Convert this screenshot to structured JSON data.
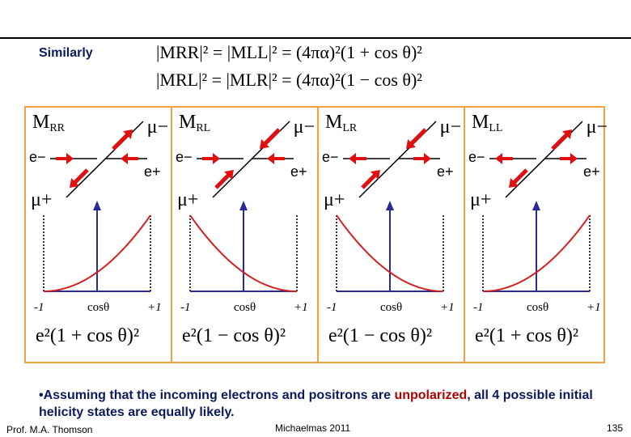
{
  "slide": {
    "heading": "Similarly",
    "eq1": "|MRR|² = |MLL|² = (4πα)²(1 + cos θ)²",
    "eq2": "|MRL|² = |MLR|² = (4πα)²(1 − cos θ)²",
    "accent_color": "#f2a040",
    "curve_color": "#d42020",
    "arrow_color": "#e01010",
    "axis_color": "#2a2a9a"
  },
  "panels": [
    {
      "label_main": "M",
      "label_sub": "RR",
      "mu_minus": "μ−",
      "e_minus": "e−",
      "e_plus": "e+",
      "mu_plus": "μ+",
      "tick_minus": "-1",
      "tick_cos": "cosθ",
      "tick_plus": "+1",
      "formula": "e²(1 + cos θ)²"
    },
    {
      "label_main": "M",
      "label_sub": "RL",
      "mu_minus": "μ−",
      "e_minus": "e−",
      "e_plus": "e+",
      "mu_plus": "μ+",
      "tick_minus": "-1",
      "tick_cos": "cosθ",
      "tick_plus": "+1",
      "formula": "e²(1 − cos θ)²"
    },
    {
      "label_main": "M",
      "label_sub": "LR",
      "mu_minus": "μ−",
      "e_minus": "e−",
      "e_plus": "e+",
      "mu_plus": "μ+",
      "tick_minus": "-1",
      "tick_cos": "cosθ",
      "tick_plus": "+1",
      "formula": "e²(1 − cos θ)²"
    },
    {
      "label_main": "M",
      "label_sub": "LL",
      "mu_minus": "μ−",
      "e_minus": "e−",
      "e_plus": "e+",
      "mu_plus": "μ+",
      "tick_minus": "-1",
      "tick_cos": "cosθ",
      "tick_plus": "+1",
      "formula": "e²(1 + cos θ)²"
    }
  ],
  "bullet": {
    "prefix": "•Assuming that the incoming electrons and positrons are ",
    "highlight": "unpolarized",
    "suffix": ", all 4 possible initial helicity states are equally likely."
  },
  "footer": {
    "author": "Prof. M.A. Thomson",
    "term": "Michaelmas 2011",
    "page": "135"
  }
}
